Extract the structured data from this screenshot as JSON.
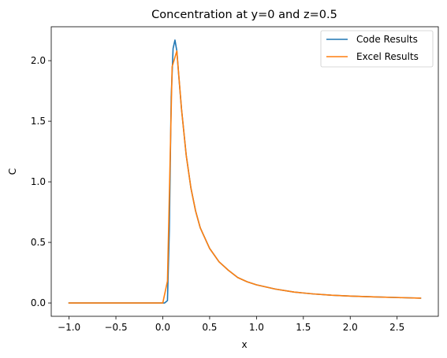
{
  "chart_data": {
    "type": "line",
    "title": "Concentration at y=0 and z=0.5",
    "xlabel": "x",
    "ylabel": "C",
    "xlim": [
      -1.19,
      2.94
    ],
    "ylim": [
      -0.11,
      2.28
    ],
    "xticks": [
      -1.0,
      -0.5,
      0.0,
      0.5,
      1.0,
      1.5,
      2.0,
      2.5
    ],
    "xtick_labels": [
      "−1.0",
      "−0.5",
      "0.0",
      "0.5",
      "1.0",
      "1.5",
      "2.0",
      "2.5"
    ],
    "yticks": [
      0.0,
      0.5,
      1.0,
      1.5,
      2.0
    ],
    "ytick_labels": [
      "0.0",
      "0.5",
      "1.0",
      "1.5",
      "2.0"
    ],
    "grid": false,
    "legend_position": "top-right",
    "series": [
      {
        "name": "Code Results",
        "color": "#1f77b4",
        "x": [
          -1.0,
          -0.5,
          0.0,
          0.02,
          0.05,
          0.07,
          0.09,
          0.11,
          0.13,
          0.15,
          0.17,
          0.2,
          0.25,
          0.3,
          0.35,
          0.4,
          0.5,
          0.6,
          0.7,
          0.8,
          0.9,
          1.0,
          1.2,
          1.4,
          1.6,
          1.8,
          2.0,
          2.25,
          2.5,
          2.75
        ],
        "y": [
          0.0,
          0.0,
          0.0,
          0.0,
          0.02,
          0.6,
          1.7,
          2.1,
          2.17,
          2.08,
          1.88,
          1.6,
          1.22,
          0.95,
          0.76,
          0.62,
          0.45,
          0.34,
          0.27,
          0.21,
          0.175,
          0.15,
          0.115,
          0.09,
          0.075,
          0.064,
          0.057,
          0.05,
          0.045,
          0.04
        ]
      },
      {
        "name": "Excel Results",
        "color": "#ff7f0e",
        "x": [
          -1.0,
          -0.5,
          0.0,
          0.05,
          0.1,
          0.15,
          0.2,
          0.25,
          0.3,
          0.35,
          0.4,
          0.5,
          0.6,
          0.7,
          0.8,
          0.9,
          1.0,
          1.2,
          1.4,
          1.6,
          1.8,
          2.0,
          2.25,
          2.5,
          2.75
        ],
        "y": [
          0.0,
          0.0,
          0.0,
          0.18,
          1.95,
          2.08,
          1.6,
          1.22,
          0.95,
          0.76,
          0.62,
          0.45,
          0.34,
          0.27,
          0.21,
          0.175,
          0.15,
          0.115,
          0.09,
          0.075,
          0.064,
          0.057,
          0.05,
          0.045,
          0.04
        ]
      }
    ]
  }
}
